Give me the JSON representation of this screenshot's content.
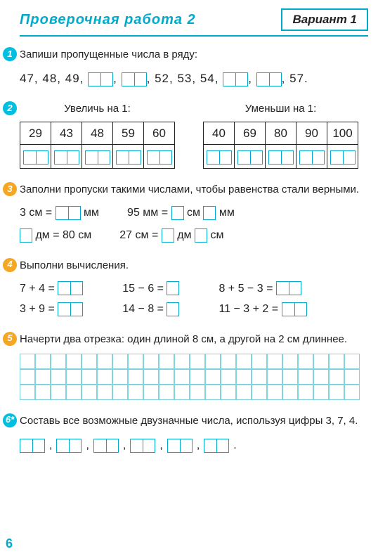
{
  "header": {
    "title": "Проверочная работа 2",
    "variant": "Вариант 1"
  },
  "t1": {
    "num": "1",
    "prompt": "Запиши пропущенные числа в ряду:",
    "seq": [
      "47,",
      "48,",
      "49,",
      null,
      ",",
      null,
      ",",
      "52,",
      "53,",
      "54,",
      null,
      ",",
      null,
      ",",
      "57."
    ]
  },
  "t2": {
    "num": "2",
    "left_title": "Увеличь на 1:",
    "right_title": "Уменьши на 1:",
    "left": [
      "29",
      "43",
      "48",
      "59",
      "60"
    ],
    "right": [
      "40",
      "69",
      "80",
      "90",
      "100"
    ]
  },
  "t3": {
    "num": "3",
    "prompt": "Заполни пропуски такими числами, чтобы равенства стали верными.",
    "r1a": "3 см =",
    "r1a2": "мм",
    "r1b": "95 мм =",
    "r1b2": "см",
    "r1b3": "мм",
    "r2a": "дм = 80 см",
    "r2b": "27 см =",
    "r2b2": "дм",
    "r2b3": "см"
  },
  "t4": {
    "num": "4",
    "prompt": "Выполни вычисления.",
    "row1": [
      "7 + 4 =",
      "15 − 6 =",
      "8 + 5 − 3 ="
    ],
    "row2": [
      "3 + 9 =",
      "14 − 8 =",
      "11 − 3 + 2 ="
    ]
  },
  "t5": {
    "num": "5",
    "prompt": "Начерти два отрезка: один длиной 8 см, а другой на 2 см длиннее."
  },
  "t6": {
    "num": "6*",
    "prompt": "Составь все возможные двузначные числа, используя цифры 3, 7, 4."
  },
  "page": "6"
}
